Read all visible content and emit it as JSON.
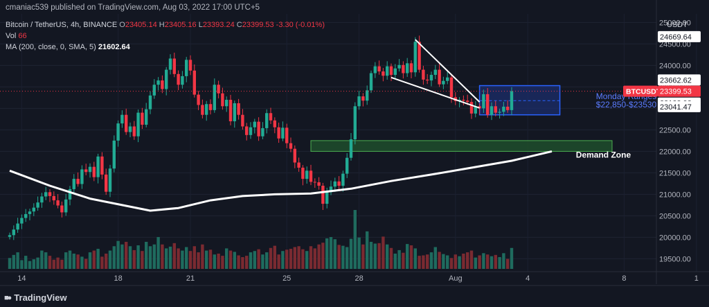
{
  "publisher": "cmaniac539 published on TradingView.com, Aug 03, 2022 17:00 UTC+5",
  "symbol": {
    "title": "Bitcoin / TetherUS, 4h, BINANCE",
    "o_label": "O",
    "o": "23405.14",
    "h_label": "H",
    "h": "23405.16",
    "l_label": "L",
    "l": "23393.24",
    "c_label": "C",
    "c": "23399.53",
    "change": "-3.30 (-0.01%)"
  },
  "volume": {
    "label": "Vol",
    "value": "66"
  },
  "ma": {
    "label": "MA (200, close, 0, SMA, 5)",
    "value": "21602.64"
  },
  "currency": "USDT",
  "brand": "TradingView",
  "colors": {
    "background": "#131722",
    "up": "#22ab94",
    "down": "#f23645",
    "range_box": "#2962ff",
    "demand_zone": "#1e4d2b"
  },
  "chart_data": {
    "type": "candlestick",
    "ylim": [
      19200,
      25200
    ],
    "y_ticks": [
      "25000.00",
      "24500.00",
      "24000.00",
      "23500.00",
      "23000.00",
      "22500.00",
      "22000.00",
      "21500.00",
      "21000.00",
      "20500.00",
      "20000.00",
      "19500.00"
    ],
    "x_ticks": [
      {
        "label": "14",
        "i": 3
      },
      {
        "label": "18",
        "i": 27
      },
      {
        "label": "21",
        "i": 45
      },
      {
        "label": "25",
        "i": 69
      },
      {
        "label": "28",
        "i": 87
      },
      {
        "label": "Aug",
        "i": 111
      },
      {
        "label": "4",
        "i": 129
      },
      {
        "label": "8",
        "i": 153
      },
      {
        "label": "1",
        "i": 171
      }
    ],
    "candles_close": [
      20050,
      20180,
      20320,
      20450,
      20540,
      20600,
      20690,
      20810,
      20950,
      21050,
      20960,
      20860,
      20740,
      20580,
      20880,
      21120,
      21360,
      21240,
      21580,
      21520,
      21640,
      21400,
      21880,
      21460,
      21060,
      21600,
      22250,
      22650,
      22850,
      22450,
      22580,
      22350,
      22900,
      22620,
      22980,
      23300,
      23550,
      23650,
      23450,
      23900,
      24160,
      23800,
      23550,
      23750,
      24130,
      23880,
      23320,
      23080,
      22850,
      23100,
      22960,
      23550,
      23350,
      23050,
      23200,
      22700,
      23120,
      22850,
      22580,
      22380,
      22560,
      22690,
      22350,
      22540,
      22890,
      22720,
      22560,
      22300,
      22550,
      22190,
      22060,
      21740,
      21620,
      21360,
      21550,
      21290,
      21280,
      21200,
      20780,
      21050,
      21180,
      21300,
      21200,
      21480,
      21850,
      22280,
      23050,
      23280,
      23180,
      23420,
      23820,
      23980,
      23860,
      23760,
      23980,
      23780,
      23930,
      24010,
      23820,
      24050,
      23840,
      24550,
      23900,
      23670,
      23650,
      23780,
      23900,
      23560,
      23640,
      23720,
      23260,
      23170,
      23200,
      23180,
      23150,
      22880,
      23050,
      23000,
      23330,
      22850,
      23050,
      22900,
      22920,
      23040,
      22960,
      23400
    ],
    "candles_volume": [
      250,
      320,
      380,
      200,
      300,
      180,
      220,
      260,
      420,
      380,
      300,
      210,
      260,
      210,
      380,
      420,
      350,
      330,
      280,
      230,
      380,
      420,
      460,
      280,
      350,
      420,
      520,
      640,
      560,
      620,
      520,
      430,
      540,
      410,
      620,
      520,
      560,
      730,
      560,
      470,
      510,
      590,
      470,
      420,
      500,
      410,
      520,
      380,
      560,
      420,
      440,
      330,
      350,
      300,
      470,
      420,
      390,
      310,
      270,
      300,
      380,
      410,
      450,
      330,
      380,
      480,
      530,
      330,
      410,
      440,
      460,
      500,
      520,
      450,
      410,
      520,
      470,
      560,
      600,
      700,
      730,
      680,
      550,
      530,
      500,
      690,
      1350,
      720,
      560,
      860,
      620,
      580,
      590,
      740,
      560,
      480,
      350,
      430,
      370,
      570,
      540,
      470,
      300,
      310,
      330,
      380,
      500,
      390,
      340,
      310,
      250,
      330,
      290,
      350,
      380,
      420,
      260,
      310,
      360,
      330,
      290,
      320,
      270,
      360,
      230,
      480
    ],
    "ma_line": [
      [
        0,
        21550
      ],
      [
        10,
        21200
      ],
      [
        20,
        20900
      ],
      [
        28,
        20750
      ],
      [
        35,
        20620
      ],
      [
        42,
        20680
      ],
      [
        50,
        20860
      ],
      [
        58,
        20960
      ],
      [
        66,
        21000
      ],
      [
        75,
        21020
      ],
      [
        85,
        21130
      ],
      [
        95,
        21310
      ],
      [
        105,
        21460
      ],
      [
        115,
        21620
      ],
      [
        125,
        21780
      ],
      [
        135,
        22000
      ]
    ],
    "trendlines": [
      {
        "from": [
          101,
          24600
        ],
        "to": [
          117,
          23150
        ]
      },
      {
        "from": [
          95,
          23720
        ],
        "to": [
          117,
          23010
        ]
      }
    ],
    "range_box": {
      "i_from": 117,
      "i_to": 137,
      "y_top": 23530,
      "y_bottom": 22850,
      "y_mid": 23180
    },
    "demand_zone": {
      "i_from": 75,
      "i_to": 150,
      "y_top": 22250,
      "y_bottom": 22000
    },
    "price_labels": [
      {
        "text": "24669.64",
        "y": 24669.64,
        "type": "plain"
      },
      {
        "text": "23662.62",
        "y": 23662.62,
        "type": "plain"
      },
      {
        "text": "23399.53",
        "y": 23399.53,
        "type": "current",
        "tag": "BTCUSDT"
      },
      {
        "text": "23123.92",
        "y": 23123.92,
        "type": "plain"
      },
      {
        "text": "23041.47",
        "y": 23041.47,
        "type": "plain"
      }
    ],
    "annotations": [
      {
        "text": "Monday Ranges",
        "i": 146,
        "y": 23220,
        "color": "#5b7cff"
      },
      {
        "text": "$22,850-$23530",
        "i": 146,
        "y": 23020,
        "color": "#5b7cff"
      },
      {
        "text": "Demand Zone",
        "i": 141,
        "y": 21850,
        "color": "#ffffff"
      }
    ]
  }
}
